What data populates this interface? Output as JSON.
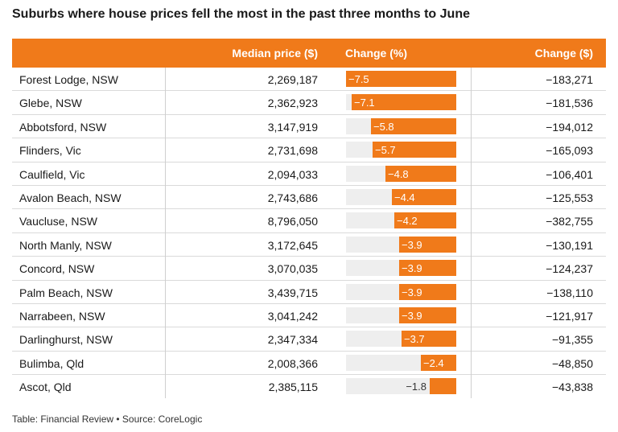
{
  "title": "Suburbs where house prices fell the most in the past three months to June",
  "footer": "Table: Financial Review • Source: CoreLogic",
  "colors": {
    "accent": "#f07a1a",
    "track": "#eeeeee"
  },
  "chart_data": {
    "type": "table",
    "columns": [
      "",
      "Median price ($)",
      "Change (%)",
      "Change ($)"
    ],
    "bar_range": [
      -7.5,
      0
    ],
    "rows": [
      {
        "suburb": "Forest Lodge, NSW",
        "price": "2,269,187",
        "pct": -7.5,
        "pct_label": "−7.5",
        "abs": "−183,271"
      },
      {
        "suburb": "Glebe, NSW",
        "price": "2,362,923",
        "pct": -7.1,
        "pct_label": "−7.1",
        "abs": "−181,536"
      },
      {
        "suburb": "Abbotsford, NSW",
        "price": "3,147,919",
        "pct": -5.8,
        "pct_label": "−5.8",
        "abs": "−194,012"
      },
      {
        "suburb": "Flinders, Vic",
        "price": "2,731,698",
        "pct": -5.7,
        "pct_label": "−5.7",
        "abs": "−165,093"
      },
      {
        "suburb": "Caulfield, Vic",
        "price": "2,094,033",
        "pct": -4.8,
        "pct_label": "−4.8",
        "abs": "−106,401"
      },
      {
        "suburb": "Avalon Beach, NSW",
        "price": "2,743,686",
        "pct": -4.4,
        "pct_label": "−4.4",
        "abs": "−125,553"
      },
      {
        "suburb": "Vaucluse, NSW",
        "price": "8,796,050",
        "pct": -4.2,
        "pct_label": "−4.2",
        "abs": "−382,755"
      },
      {
        "suburb": "North Manly, NSW",
        "price": "3,172,645",
        "pct": -3.9,
        "pct_label": "−3.9",
        "abs": "−130,191"
      },
      {
        "suburb": "Concord, NSW",
        "price": "3,070,035",
        "pct": -3.9,
        "pct_label": "−3.9",
        "abs": "−124,237"
      },
      {
        "suburb": "Palm Beach, NSW",
        "price": "3,439,715",
        "pct": -3.9,
        "pct_label": "−3.9",
        "abs": "−138,110"
      },
      {
        "suburb": "Narrabeen, NSW",
        "price": "3,041,242",
        "pct": -3.9,
        "pct_label": "−3.9",
        "abs": "−121,917"
      },
      {
        "suburb": "Darlinghurst, NSW",
        "price": "2,347,334",
        "pct": -3.7,
        "pct_label": "−3.7",
        "abs": "−91,355"
      },
      {
        "suburb": "Bulimba, Qld",
        "price": "2,008,366",
        "pct": -2.4,
        "pct_label": "−2.4",
        "abs": "−48,850"
      },
      {
        "suburb": "Ascot, Qld",
        "price": "2,385,115",
        "pct": -1.8,
        "pct_label": "−1.8",
        "abs": "−43,838"
      }
    ]
  }
}
